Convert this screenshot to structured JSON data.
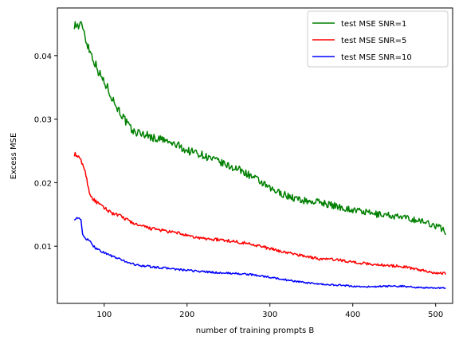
{
  "chart_data": {
    "type": "line",
    "title": "",
    "xlabel": "number of training prompts B",
    "ylabel": "Excess MSE",
    "xlim": [
      43.5,
      520.5
    ],
    "ylim": [
      0.001,
      0.0475
    ],
    "xticks": [
      100,
      200,
      300,
      400,
      500
    ],
    "xtick_labels": [
      "100",
      "200",
      "300",
      "400",
      "500"
    ],
    "yticks": [
      0.01,
      0.02,
      0.03,
      0.04
    ],
    "ytick_labels": [
      "0.01",
      "0.02",
      "0.03",
      "0.04"
    ],
    "grid": false,
    "legend_position": "top-right",
    "x_start": 64,
    "x_step": 1,
    "series": [
      {
        "name": "test MSE SNR=1",
        "color": "#008000",
        "anchors": [
          [
            64,
            0.045
          ],
          [
            66,
            0.0448
          ],
          [
            70,
            0.0446
          ],
          [
            74,
            0.0448
          ],
          [
            78,
            0.0425
          ],
          [
            82,
            0.041
          ],
          [
            86,
            0.0398
          ],
          [
            90,
            0.0385
          ],
          [
            95,
            0.037
          ],
          [
            100,
            0.0358
          ],
          [
            106,
            0.0345
          ],
          [
            110,
            0.0332
          ],
          [
            116,
            0.0318
          ],
          [
            122,
            0.0305
          ],
          [
            128,
            0.0292
          ],
          [
            135,
            0.028
          ],
          [
            140,
            0.0279
          ],
          [
            150,
            0.0276
          ],
          [
            160,
            0.027
          ],
          [
            170,
            0.0268
          ],
          [
            180,
            0.0262
          ],
          [
            190,
            0.0258
          ],
          [
            200,
            0.025
          ],
          [
            210,
            0.0248
          ],
          [
            220,
            0.0243
          ],
          [
            230,
            0.0237
          ],
          [
            240,
            0.0232
          ],
          [
            250,
            0.0226
          ],
          [
            260,
            0.0222
          ],
          [
            270,
            0.0216
          ],
          [
            280,
            0.0208
          ],
          [
            290,
            0.02
          ],
          [
            300,
            0.019
          ],
          [
            310,
            0.0185
          ],
          [
            320,
            0.018
          ],
          [
            330,
            0.0175
          ],
          [
            340,
            0.0172
          ],
          [
            350,
            0.017
          ],
          [
            360,
            0.017
          ],
          [
            370,
            0.0166
          ],
          [
            380,
            0.0163
          ],
          [
            390,
            0.016
          ],
          [
            400,
            0.0157
          ],
          [
            410,
            0.0155
          ],
          [
            420,
            0.0152
          ],
          [
            430,
            0.015
          ],
          [
            440,
            0.015
          ],
          [
            450,
            0.0147
          ],
          [
            460,
            0.0145
          ],
          [
            470,
            0.0143
          ],
          [
            480,
            0.014
          ],
          [
            490,
            0.0137
          ],
          [
            500,
            0.0132
          ],
          [
            505,
            0.013
          ],
          [
            510,
            0.0125
          ],
          [
            512,
            0.0122
          ]
        ]
      },
      {
        "name": "test MSE SNR=5",
        "color": "#ff0000",
        "anchors": [
          [
            64,
            0.0245
          ],
          [
            66,
            0.0243
          ],
          [
            70,
            0.0238
          ],
          [
            74,
            0.023
          ],
          [
            78,
            0.0212
          ],
          [
            82,
            0.0185
          ],
          [
            86,
            0.0175
          ],
          [
            90,
            0.017
          ],
          [
            95,
            0.0165
          ],
          [
            100,
            0.016
          ],
          [
            110,
            0.0152
          ],
          [
            120,
            0.0147
          ],
          [
            130,
            0.014
          ],
          [
            140,
            0.0133
          ],
          [
            150,
            0.013
          ],
          [
            160,
            0.0127
          ],
          [
            170,
            0.0125
          ],
          [
            180,
            0.0122
          ],
          [
            190,
            0.0121
          ],
          [
            200,
            0.0116
          ],
          [
            220,
            0.0112
          ],
          [
            240,
            0.011
          ],
          [
            260,
            0.0107
          ],
          [
            280,
            0.0103
          ],
          [
            300,
            0.0096
          ],
          [
            320,
            0.009
          ],
          [
            340,
            0.0085
          ],
          [
            360,
            0.008
          ],
          [
            380,
            0.0079
          ],
          [
            400,
            0.0075
          ],
          [
            420,
            0.0072
          ],
          [
            440,
            0.007
          ],
          [
            460,
            0.0068
          ],
          [
            480,
            0.0063
          ],
          [
            500,
            0.0058
          ],
          [
            512,
            0.0057
          ]
        ]
      },
      {
        "name": "test MSE SNR=10",
        "color": "#0000ff",
        "anchors": [
          [
            64,
            0.0143
          ],
          [
            68,
            0.0145
          ],
          [
            72,
            0.014
          ],
          [
            74,
            0.0118
          ],
          [
            78,
            0.0112
          ],
          [
            82,
            0.0108
          ],
          [
            86,
            0.0102
          ],
          [
            90,
            0.0097
          ],
          [
            95,
            0.0093
          ],
          [
            100,
            0.009
          ],
          [
            110,
            0.0084
          ],
          [
            120,
            0.0079
          ],
          [
            130,
            0.0074
          ],
          [
            140,
            0.007
          ],
          [
            150,
            0.0069
          ],
          [
            160,
            0.0067
          ],
          [
            170,
            0.0066
          ],
          [
            180,
            0.0065
          ],
          [
            190,
            0.0063
          ],
          [
            200,
            0.0062
          ],
          [
            220,
            0.006
          ],
          [
            240,
            0.0058
          ],
          [
            260,
            0.0057
          ],
          [
            280,
            0.0055
          ],
          [
            300,
            0.0051
          ],
          [
            320,
            0.0047
          ],
          [
            340,
            0.0043
          ],
          [
            360,
            0.004
          ],
          [
            380,
            0.0039
          ],
          [
            400,
            0.0037
          ],
          [
            420,
            0.0036
          ],
          [
            440,
            0.0037
          ],
          [
            460,
            0.0037
          ],
          [
            480,
            0.0035
          ],
          [
            500,
            0.0034
          ],
          [
            512,
            0.0034
          ]
        ]
      }
    ]
  }
}
